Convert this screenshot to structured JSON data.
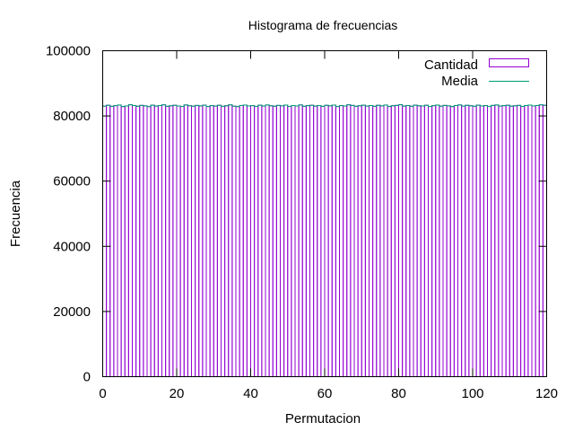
{
  "chart_data": {
    "type": "bar",
    "title": "Histograma de frecuencias",
    "xlabel": "Permutacion",
    "ylabel": "Frecuencia",
    "xlim": [
      0,
      120
    ],
    "ylim": [
      0,
      100000
    ],
    "x_ticks": [
      0,
      20,
      40,
      60,
      80,
      100,
      120
    ],
    "y_ticks": [
      0,
      20000,
      40000,
      60000,
      80000,
      100000
    ],
    "grid": false,
    "legend_position": "top-right",
    "colors": {
      "bars": "#9400d3",
      "mean": "#009e73",
      "axes": "#000000"
    },
    "series": [
      {
        "name": "Cantidad",
        "style": "boxes",
        "x": [
          0,
          1,
          2,
          3,
          4,
          5,
          6,
          7,
          8,
          9,
          10,
          11,
          12,
          13,
          14,
          15,
          16,
          17,
          18,
          19,
          20,
          21,
          22,
          23,
          24,
          25,
          26,
          27,
          28,
          29,
          30,
          31,
          32,
          33,
          34,
          35,
          36,
          37,
          38,
          39,
          40,
          41,
          42,
          43,
          44,
          45,
          46,
          47,
          48,
          49,
          50,
          51,
          52,
          53,
          54,
          55,
          56,
          57,
          58,
          59,
          60,
          61,
          62,
          63,
          64,
          65,
          66,
          67,
          68,
          69,
          70,
          71,
          72,
          73,
          74,
          75,
          76,
          77,
          78,
          79,
          80,
          81,
          82,
          83,
          84,
          85,
          86,
          87,
          88,
          89,
          90,
          91,
          92,
          93,
          94,
          95,
          96,
          97,
          98,
          99,
          100,
          101,
          102,
          103,
          104,
          105,
          106,
          107,
          108,
          109,
          110,
          111,
          112,
          113,
          114,
          115,
          116,
          117,
          118,
          119
        ],
        "values": [
          83010,
          83280,
          82940,
          83150,
          83350,
          82880,
          83060,
          83420,
          83190,
          82970,
          83240,
          83100,
          82860,
          83300,
          83020,
          83180,
          83400,
          82950,
          83110,
          83260,
          83050,
          82920,
          83370,
          83140,
          82990,
          83220,
          83080,
          83310,
          82900,
          83160,
          83030,
          83270,
          82960,
          83130,
          83390,
          83000,
          82870,
          83210,
          83340,
          83070,
          83170,
          82930,
          83290,
          83040,
          83360,
          83120,
          82980,
          83230,
          83090,
          83320,
          82910,
          83200,
          83060,
          83380,
          82970,
          83150,
          83280,
          83010,
          83190,
          82940,
          83250,
          83100,
          83330,
          82890,
          83170,
          83050,
          83410,
          83220,
          82960,
          83130,
          83300,
          83020,
          83180,
          82950,
          83260,
          83080,
          83350,
          82900,
          83140,
          83240,
          83430,
          83030,
          83200,
          82980,
          83310,
          83110,
          83060,
          83270,
          82920,
          83160,
          83340,
          83000,
          83230,
          83090,
          82870,
          83190,
          83380,
          83040,
          83250,
          83130,
          82960,
          83300,
          83070,
          83170,
          82930,
          83220,
          83360,
          83020,
          83150,
          83280,
          82990,
          83110,
          83240,
          82910,
          83180,
          83330,
          83050,
          83200,
          83400,
          83260
        ]
      },
      {
        "name": "Media",
        "style": "lines",
        "x": [
          0,
          1,
          2,
          3,
          4,
          5,
          6,
          7,
          8,
          9,
          10,
          11,
          12,
          13,
          14,
          15,
          16,
          17,
          18,
          19,
          20,
          21,
          22,
          23,
          24,
          25,
          26,
          27,
          28,
          29,
          30,
          31,
          32,
          33,
          34,
          35,
          36,
          37,
          38,
          39,
          40,
          41,
          42,
          43,
          44,
          45,
          46,
          47,
          48,
          49,
          50,
          51,
          52,
          53,
          54,
          55,
          56,
          57,
          58,
          59,
          60,
          61,
          62,
          63,
          64,
          65,
          66,
          67,
          68,
          69,
          70,
          71,
          72,
          73,
          74,
          75,
          76,
          77,
          78,
          79,
          80,
          81,
          82,
          83,
          84,
          85,
          86,
          87,
          88,
          89,
          90,
          91,
          92,
          93,
          94,
          95,
          96,
          97,
          98,
          99,
          100,
          101,
          102,
          103,
          104,
          105,
          106,
          107,
          108,
          109,
          110,
          111,
          112,
          113,
          114,
          115,
          116,
          117,
          118,
          119
        ],
        "values": [
          83010,
          83280,
          82940,
          83150,
          83350,
          82880,
          83060,
          83420,
          83190,
          82970,
          83240,
          83100,
          82860,
          83300,
          83020,
          83180,
          83400,
          82950,
          83110,
          83260,
          83050,
          82920,
          83370,
          83140,
          82990,
          83220,
          83080,
          83310,
          82900,
          83160,
          83030,
          83270,
          82960,
          83130,
          83390,
          83000,
          82870,
          83210,
          83340,
          83070,
          83170,
          82930,
          83290,
          83040,
          83360,
          83120,
          82980,
          83230,
          83090,
          83320,
          82910,
          83200,
          83060,
          83380,
          82970,
          83150,
          83280,
          83010,
          83190,
          82940,
          83250,
          83100,
          83330,
          82890,
          83170,
          83050,
          83410,
          83220,
          82960,
          83130,
          83300,
          83020,
          83180,
          82950,
          83260,
          83080,
          83350,
          82900,
          83140,
          83240,
          83430,
          83030,
          83200,
          82980,
          83310,
          83110,
          83060,
          83270,
          82920,
          83160,
          83340,
          83000,
          83230,
          83090,
          82870,
          83190,
          83380,
          83040,
          83250,
          83130,
          82960,
          83300,
          83070,
          83170,
          82930,
          83220,
          83360,
          83020,
          83150,
          83280,
          82990,
          83110,
          83240,
          82910,
          83180,
          83330,
          83050,
          83200,
          83400,
          83260
        ]
      }
    ]
  }
}
